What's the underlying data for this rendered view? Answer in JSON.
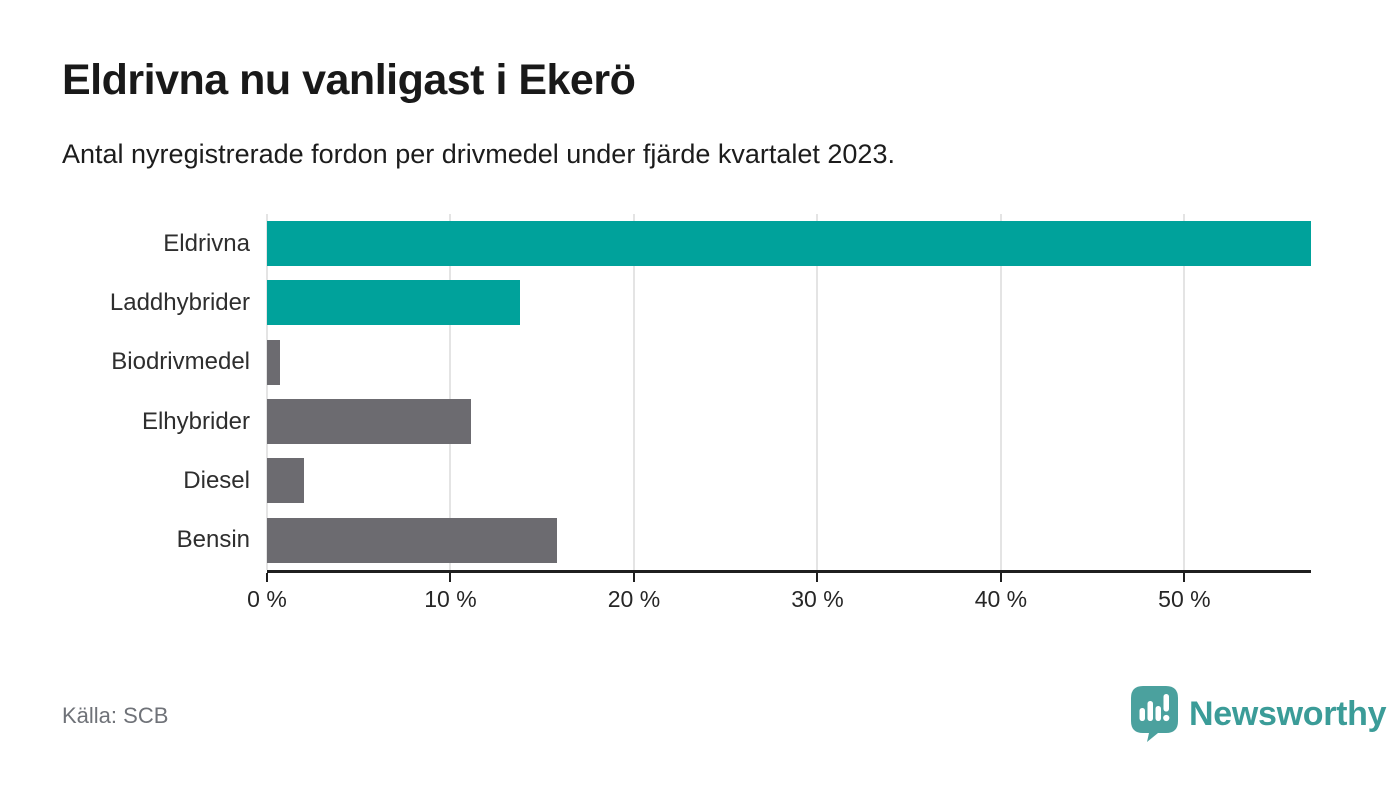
{
  "header": {
    "title": "Eldrivna nu vanligast i Ekerö",
    "subtitle": "Antal nyregistrerade fordon per drivmedel under fjärde kvartalet 2023."
  },
  "chart_data": {
    "type": "bar",
    "orientation": "horizontal",
    "categories": [
      "Eldrivna",
      "Laddhybrider",
      "Biodrivmedel",
      "Elhybrider",
      "Diesel",
      "Bensin"
    ],
    "values": [
      56.9,
      13.8,
      0.7,
      11.1,
      2.0,
      15.8
    ],
    "unit": "%",
    "bar_colors": [
      "#00a29b",
      "#00a29b",
      "#6c6b70",
      "#6c6b70",
      "#6c6b70",
      "#6c6b70"
    ],
    "xlim": [
      0,
      56.9
    ],
    "x_tick_values": [
      0,
      10,
      20,
      30,
      40,
      50
    ],
    "x_tick_labels": [
      "0 %",
      "10 %",
      "20 %",
      "30 %",
      "40 %",
      "50 %"
    ],
    "grid": true,
    "legend": "none",
    "title": "Eldrivna nu vanligast i Ekerö",
    "xlabel": "",
    "ylabel": ""
  },
  "colors": {
    "bar_teal": "#00a29b",
    "bar_gray": "#6c6b70",
    "gridline": "#e4e4e4",
    "axis": "#1f1f1f",
    "brand_teal": "#3b9c98",
    "logo_bubble_teal": "#4ba19e"
  },
  "footer": {
    "source": "Källa: SCB",
    "brand": "Newsworthy"
  }
}
